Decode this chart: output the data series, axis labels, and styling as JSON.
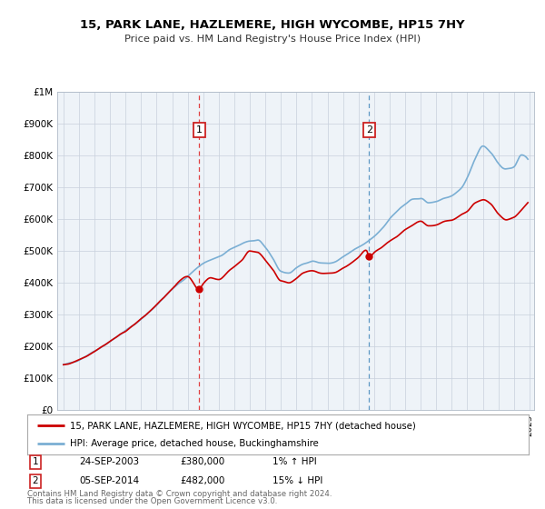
{
  "title": "15, PARK LANE, HAZLEMERE, HIGH WYCOMBE, HP15 7HY",
  "subtitle": "Price paid vs. HM Land Registry's House Price Index (HPI)",
  "ylim_min": 0,
  "ylim_max": 1000000,
  "yticks": [
    0,
    100000,
    200000,
    300000,
    400000,
    500000,
    600000,
    700000,
    800000,
    900000,
    1000000
  ],
  "ytick_labels": [
    "£0",
    "£100K",
    "£200K",
    "£300K",
    "£400K",
    "£500K",
    "£600K",
    "£700K",
    "£800K",
    "£900K",
    "£1M"
  ],
  "hpi_color": "#7bafd4",
  "price_color": "#cc0000",
  "background_plot": "#eef3f8",
  "marker1_year": 2003.73,
  "marker1_value": 380000,
  "marker1_label": "1",
  "marker1_date": "24-SEP-2003",
  "marker1_price": "£380,000",
  "marker1_hpi": "1% ↑ HPI",
  "marker2_year": 2014.68,
  "marker2_value": 482000,
  "marker2_label": "2",
  "marker2_date": "05-SEP-2014",
  "marker2_price": "£482,000",
  "marker2_hpi": "15% ↓ HPI",
  "legend_line1": "15, PARK LANE, HAZLEMERE, HIGH WYCOMBE, HP15 7HY (detached house)",
  "legend_line2": "HPI: Average price, detached house, Buckinghamshire",
  "footnote1": "Contains HM Land Registry data © Crown copyright and database right 2024.",
  "footnote2": "This data is licensed under the Open Government Licence v3.0."
}
